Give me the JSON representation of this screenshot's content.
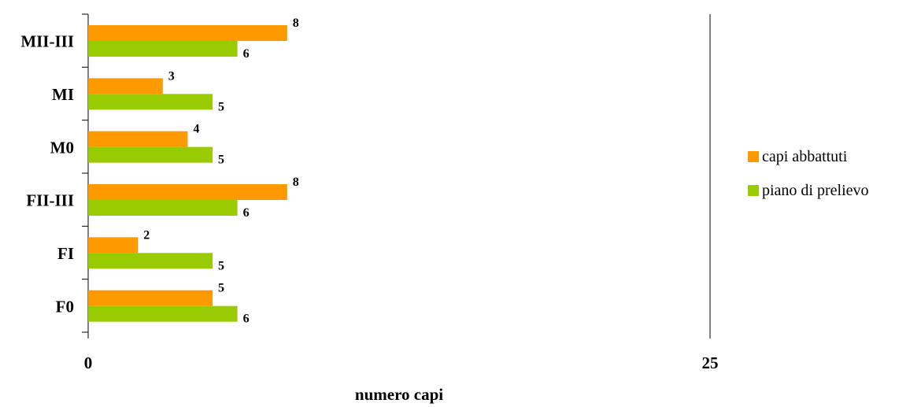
{
  "chart_data": {
    "type": "bar",
    "orientation": "horizontal",
    "categories": [
      "MII-III",
      "MI",
      "M0",
      "FII-III",
      "FI",
      "F0"
    ],
    "series": [
      {
        "name": "capi abbattuti",
        "color": "#ff9900",
        "values": [
          8,
          3,
          4,
          8,
          2,
          5
        ]
      },
      {
        "name": "piano di prelievo",
        "color": "#99cc00",
        "values": [
          6,
          5,
          5,
          6,
          5,
          6
        ]
      }
    ],
    "xlabel": "numero capi",
    "ylabel": "",
    "xlim": [
      0,
      25
    ],
    "xticks": [
      "0",
      "25"
    ],
    "grid": false,
    "legend_position": "right"
  }
}
